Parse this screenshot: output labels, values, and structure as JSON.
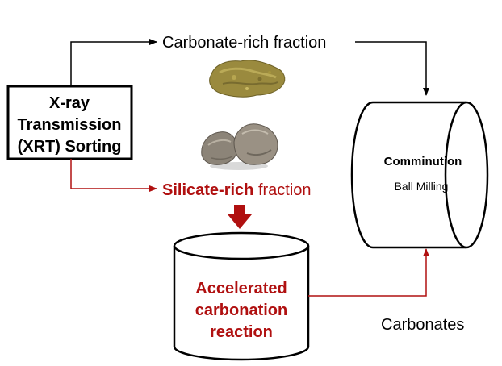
{
  "xrt_box": {
    "line1": "X-ray",
    "line2": "Transmission",
    "line3": "(XRT) Sorting"
  },
  "carbonate_fraction": {
    "label": "Carbonate-rich fraction"
  },
  "silicate_fraction": {
    "label_bold": "Silicate-rich",
    "label_rest": " fraction"
  },
  "comminution": {
    "title": "Comminution",
    "subtitle": "Ball Milling"
  },
  "carbonation_reactor": {
    "line1": "Accelerated",
    "line2": "carbonation",
    "line3": "reaction"
  },
  "carbonates": {
    "label": "Carbonates"
  },
  "colors": {
    "black_flow": "#000000",
    "red_flow": "#b01010",
    "carbonate_rock": "#9a8a3e",
    "silicate_rock": "#8c8478"
  },
  "icons": [
    "carbonate-rock-image",
    "silicate-rock-image"
  ]
}
